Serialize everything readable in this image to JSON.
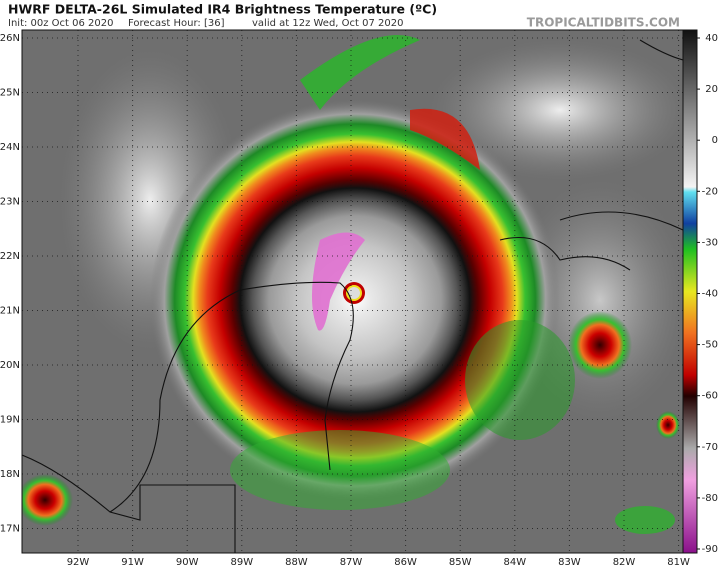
{
  "header": {
    "title": "HWRF DELTA-26L Simulated IR4 Brightness Temperature (ºC)",
    "init": "Init: 00z Oct 06 2020",
    "forecast": "Forecast Hour: [36]",
    "valid": "valid at 12z Wed, Oct 07 2020",
    "site": "TROPICALTIDBITS.COM"
  },
  "map": {
    "latitudes": [
      "26N",
      "25N",
      "24N",
      "23N",
      "22N",
      "21N",
      "20N",
      "19N",
      "18N",
      "17N"
    ],
    "longitudes": [
      "92W",
      "91W",
      "90W",
      "89W",
      "88W",
      "87W",
      "86W",
      "85W",
      "84W",
      "83W",
      "82W",
      "81W"
    ]
  },
  "colorbar": {
    "ticks": [
      40,
      20,
      0,
      -20,
      -30,
      -40,
      -50,
      -60,
      -70,
      -80,
      -90
    ]
  }
}
